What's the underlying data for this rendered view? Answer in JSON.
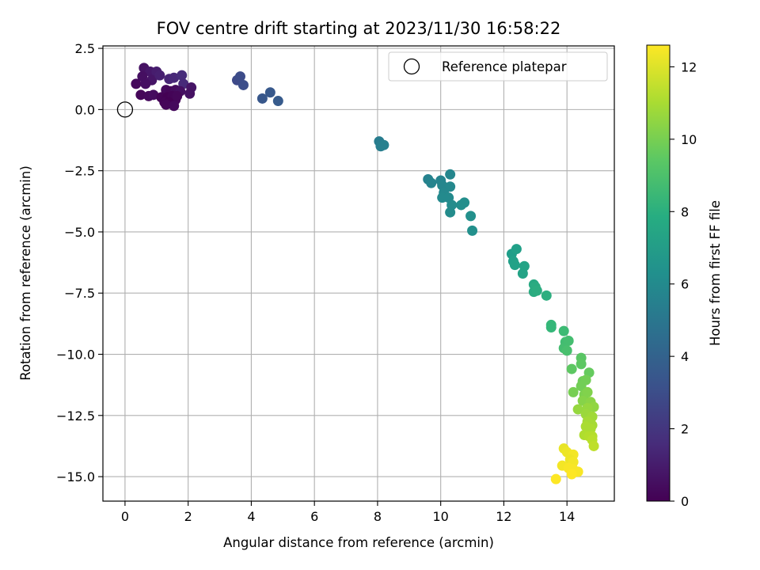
{
  "chart_data": {
    "type": "scatter",
    "title": "FOV centre drift starting at 2023/11/30 16:58:22",
    "xlabel": "Angular distance from reference (arcmin)",
    "ylabel": "Rotation from reference (arcmin)",
    "xlim": [
      -0.7,
      15.5
    ],
    "ylim": [
      -16,
      2.6
    ],
    "xticks": [
      0,
      2,
      4,
      6,
      8,
      10,
      12,
      14
    ],
    "xtick_labels": [
      "0",
      "2",
      "4",
      "6",
      "8",
      "10",
      "12",
      "14"
    ],
    "yticks": [
      2.5,
      0,
      -2.5,
      -5,
      -7.5,
      -10,
      -12.5,
      -15
    ],
    "ytick_labels": [
      "2.5",
      "0.0",
      "−2.5",
      "−5.0",
      "−7.5",
      "−10.0",
      "−12.5",
      "−15.0"
    ],
    "grid": true,
    "legend": {
      "placement": "top-right",
      "entries": [
        {
          "label": "Reference platepar",
          "marker": "open-circle"
        }
      ]
    },
    "reference_point": {
      "x": 0,
      "y": 0
    },
    "colorbar": {
      "label": "Hours from first FF file",
      "colormap": "viridis",
      "range": [
        0,
        12.6
      ],
      "ticks": [
        0,
        2,
        4,
        6,
        8,
        10,
        12
      ],
      "tick_labels": [
        "0",
        "2",
        "4",
        "6",
        "8",
        "10",
        "12"
      ]
    },
    "points": [
      {
        "x": 0.6,
        "y": 1.7,
        "t": 0.6
      },
      {
        "x": 0.8,
        "y": 1.55,
        "t": 0.8
      },
      {
        "x": 1.0,
        "y": 1.55,
        "t": 1.0
      },
      {
        "x": 0.55,
        "y": 1.35,
        "t": 0.5
      },
      {
        "x": 0.85,
        "y": 1.2,
        "t": 0.7
      },
      {
        "x": 1.1,
        "y": 1.4,
        "t": 1.1
      },
      {
        "x": 1.4,
        "y": 1.25,
        "t": 1.3
      },
      {
        "x": 1.55,
        "y": 1.3,
        "t": 1.4
      },
      {
        "x": 1.8,
        "y": 1.4,
        "t": 1.6
      },
      {
        "x": 1.85,
        "y": 1.05,
        "t": 1.5
      },
      {
        "x": 0.35,
        "y": 1.05,
        "t": 0.3
      },
      {
        "x": 0.65,
        "y": 1.05,
        "t": 0.5
      },
      {
        "x": 1.3,
        "y": 0.8,
        "t": 0.3
      },
      {
        "x": 1.45,
        "y": 0.75,
        "t": 0.2
      },
      {
        "x": 1.6,
        "y": 0.8,
        "t": 0.4
      },
      {
        "x": 1.75,
        "y": 0.75,
        "t": 0.5
      },
      {
        "x": 2.1,
        "y": 0.9,
        "t": 0.7
      },
      {
        "x": 2.05,
        "y": 0.65,
        "t": 0.6
      },
      {
        "x": 0.5,
        "y": 0.6,
        "t": 0.2
      },
      {
        "x": 0.75,
        "y": 0.55,
        "t": 0.3
      },
      {
        "x": 0.9,
        "y": 0.6,
        "t": 0.4
      },
      {
        "x": 1.15,
        "y": 0.5,
        "t": 0.1
      },
      {
        "x": 1.35,
        "y": 0.5,
        "t": 0.0
      },
      {
        "x": 1.5,
        "y": 0.55,
        "t": 0.1
      },
      {
        "x": 1.6,
        "y": 0.4,
        "t": 0.2
      },
      {
        "x": 1.25,
        "y": 0.3,
        "t": 0.1
      },
      {
        "x": 1.4,
        "y": 0.3,
        "t": 0.0
      },
      {
        "x": 1.3,
        "y": 0.2,
        "t": 0.2
      },
      {
        "x": 1.55,
        "y": 0.15,
        "t": 0.3
      },
      {
        "x": 1.65,
        "y": 0.55,
        "t": 0.2
      },
      {
        "x": 3.55,
        "y": 1.2,
        "t": 2.8
      },
      {
        "x": 3.65,
        "y": 1.35,
        "t": 2.9
      },
      {
        "x": 3.75,
        "y": 1.0,
        "t": 3.0
      },
      {
        "x": 4.35,
        "y": 0.45,
        "t": 3.4
      },
      {
        "x": 4.6,
        "y": 0.7,
        "t": 3.5
      },
      {
        "x": 4.85,
        "y": 0.35,
        "t": 3.6
      },
      {
        "x": 8.05,
        "y": -1.3,
        "t": 5.3
      },
      {
        "x": 8.1,
        "y": -1.5,
        "t": 5.4
      },
      {
        "x": 8.2,
        "y": -1.45,
        "t": 5.5
      },
      {
        "x": 9.6,
        "y": -2.85,
        "t": 5.6
      },
      {
        "x": 9.7,
        "y": -3.0,
        "t": 5.7
      },
      {
        "x": 10.0,
        "y": -2.9,
        "t": 5.7
      },
      {
        "x": 10.05,
        "y": -3.1,
        "t": 5.8
      },
      {
        "x": 10.3,
        "y": -2.65,
        "t": 5.8
      },
      {
        "x": 10.3,
        "y": -3.15,
        "t": 5.9
      },
      {
        "x": 10.1,
        "y": -3.4,
        "t": 5.9
      },
      {
        "x": 10.05,
        "y": -3.6,
        "t": 6.0
      },
      {
        "x": 10.25,
        "y": -3.6,
        "t": 6.0
      },
      {
        "x": 10.35,
        "y": -3.9,
        "t": 6.1
      },
      {
        "x": 10.3,
        "y": -4.2,
        "t": 6.1
      },
      {
        "x": 10.65,
        "y": -3.9,
        "t": 6.2
      },
      {
        "x": 10.75,
        "y": -3.8,
        "t": 6.2
      },
      {
        "x": 10.95,
        "y": -4.35,
        "t": 6.3
      },
      {
        "x": 11.0,
        "y": -4.95,
        "t": 6.3
      },
      {
        "x": 12.25,
        "y": -5.9,
        "t": 7.0
      },
      {
        "x": 12.4,
        "y": -5.7,
        "t": 7.1
      },
      {
        "x": 12.3,
        "y": -6.2,
        "t": 7.1
      },
      {
        "x": 12.35,
        "y": -6.35,
        "t": 7.2
      },
      {
        "x": 12.65,
        "y": -6.4,
        "t": 7.3
      },
      {
        "x": 12.6,
        "y": -6.7,
        "t": 7.3
      },
      {
        "x": 12.95,
        "y": -7.15,
        "t": 7.6
      },
      {
        "x": 13.0,
        "y": -7.25,
        "t": 7.7
      },
      {
        "x": 12.95,
        "y": -7.45,
        "t": 7.7
      },
      {
        "x": 13.05,
        "y": -7.4,
        "t": 7.8
      },
      {
        "x": 13.35,
        "y": -7.6,
        "t": 7.9
      },
      {
        "x": 13.5,
        "y": -8.8,
        "t": 8.4
      },
      {
        "x": 13.5,
        "y": -8.9,
        "t": 8.4
      },
      {
        "x": 13.9,
        "y": -9.05,
        "t": 8.6
      },
      {
        "x": 13.95,
        "y": -9.5,
        "t": 8.7
      },
      {
        "x": 14.05,
        "y": -9.45,
        "t": 8.8
      },
      {
        "x": 13.9,
        "y": -9.75,
        "t": 8.8
      },
      {
        "x": 14.0,
        "y": -9.85,
        "t": 8.9
      },
      {
        "x": 14.45,
        "y": -10.15,
        "t": 9.3
      },
      {
        "x": 14.45,
        "y": -10.4,
        "t": 9.4
      },
      {
        "x": 14.15,
        "y": -10.6,
        "t": 9.4
      },
      {
        "x": 14.7,
        "y": -10.75,
        "t": 9.6
      },
      {
        "x": 14.5,
        "y": -11.1,
        "t": 9.8
      },
      {
        "x": 14.6,
        "y": -11.05,
        "t": 9.9
      },
      {
        "x": 14.45,
        "y": -11.3,
        "t": 9.9
      },
      {
        "x": 14.2,
        "y": -11.55,
        "t": 10.0
      },
      {
        "x": 14.55,
        "y": -11.65,
        "t": 10.1
      },
      {
        "x": 14.65,
        "y": -11.55,
        "t": 10.2
      },
      {
        "x": 14.5,
        "y": -11.9,
        "t": 10.3
      },
      {
        "x": 14.75,
        "y": -11.95,
        "t": 10.4
      },
      {
        "x": 14.85,
        "y": -12.15,
        "t": 10.5
      },
      {
        "x": 14.35,
        "y": -12.25,
        "t": 10.6
      },
      {
        "x": 14.65,
        "y": -12.2,
        "t": 10.6
      },
      {
        "x": 14.6,
        "y": -12.45,
        "t": 10.7
      },
      {
        "x": 14.8,
        "y": -12.55,
        "t": 10.8
      },
      {
        "x": 14.65,
        "y": -12.75,
        "t": 10.9
      },
      {
        "x": 14.8,
        "y": -12.9,
        "t": 10.9
      },
      {
        "x": 14.6,
        "y": -12.95,
        "t": 11.0
      },
      {
        "x": 14.75,
        "y": -13.05,
        "t": 11.0
      },
      {
        "x": 14.55,
        "y": -13.3,
        "t": 11.1
      },
      {
        "x": 14.7,
        "y": -13.35,
        "t": 11.2
      },
      {
        "x": 14.8,
        "y": -13.35,
        "t": 11.2
      },
      {
        "x": 14.8,
        "y": -13.5,
        "t": 11.3
      },
      {
        "x": 14.85,
        "y": -13.75,
        "t": 11.4
      },
      {
        "x": 13.9,
        "y": -13.85,
        "t": 12.2
      },
      {
        "x": 14.0,
        "y": -14.0,
        "t": 12.3
      },
      {
        "x": 14.2,
        "y": -14.1,
        "t": 12.4
      },
      {
        "x": 14.1,
        "y": -14.3,
        "t": 12.3
      },
      {
        "x": 14.2,
        "y": -14.4,
        "t": 12.4
      },
      {
        "x": 13.85,
        "y": -14.55,
        "t": 12.4
      },
      {
        "x": 14.05,
        "y": -14.65,
        "t": 12.5
      },
      {
        "x": 14.2,
        "y": -14.7,
        "t": 12.5
      },
      {
        "x": 14.35,
        "y": -14.8,
        "t": 12.5
      },
      {
        "x": 14.15,
        "y": -14.9,
        "t": 12.6
      },
      {
        "x": 13.65,
        "y": -15.1,
        "t": 12.6
      }
    ]
  }
}
